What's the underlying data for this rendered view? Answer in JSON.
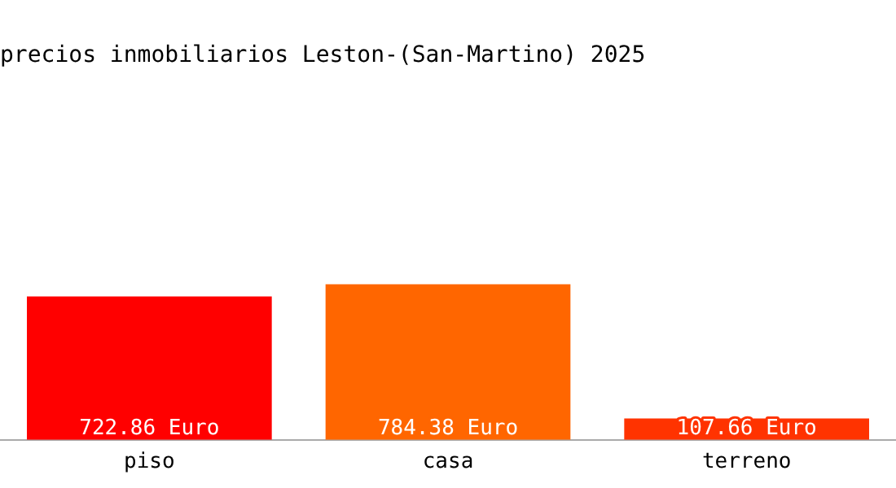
{
  "chart_data": {
    "type": "bar",
    "title": "precios inmobiliarios Leston-(San-Martino) 2025",
    "categories": [
      "piso",
      "casa",
      "terreno"
    ],
    "values": [
      722.86,
      784.38,
      107.66
    ],
    "colors": [
      "#ff0000",
      "#ff6600",
      "#ff3300"
    ],
    "value_labels": [
      "722.86 Euro",
      "784.38 Euro",
      "107.66 Euro"
    ],
    "tick_labels": "x",
    "grid": false,
    "legend": false
  }
}
